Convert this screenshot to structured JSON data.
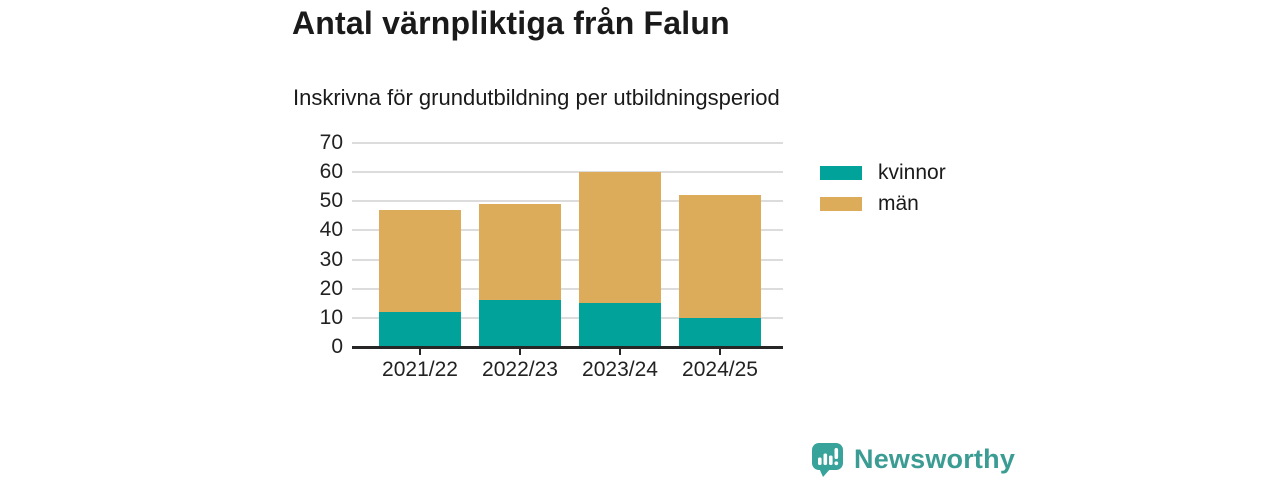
{
  "header": {
    "title": "Antal värnpliktiga från Falun",
    "subtitle": "Inskrivna för grundutbildning per utbildningsperiod"
  },
  "chart_data": {
    "type": "bar",
    "stacked": true,
    "title": "Antal värnpliktiga från Falun",
    "subtitle": "Inskrivna för grundutbildning per utbildningsperiod",
    "categories": [
      "2021/22",
      "2022/23",
      "2023/24",
      "2024/25"
    ],
    "series": [
      {
        "name": "kvinnor",
        "color": "#00A29A",
        "values": [
          12,
          16,
          15,
          10
        ]
      },
      {
        "name": "män",
        "color": "#DCAC5B",
        "values": [
          35,
          33,
          45,
          42
        ]
      }
    ],
    "stack_totals": [
      47,
      49,
      60,
      52
    ],
    "xlabel": "",
    "ylabel": "",
    "ylim": [
      0,
      70
    ],
    "yticks": [
      0,
      10,
      20,
      30,
      40,
      50,
      60,
      70
    ],
    "grid": true,
    "legend_position": "right"
  },
  "colors": {
    "kvinnor": "#00A29A",
    "man": "#DCAC5B",
    "axis": "#262626",
    "gridline": "#DCDCDC",
    "text": "#1A1A1A",
    "brand": "#3B9C94"
  },
  "footer": {
    "brand": "Newsworthy",
    "logo_icon": "newsworthy-speech-bubble-bar-chart-icon"
  }
}
